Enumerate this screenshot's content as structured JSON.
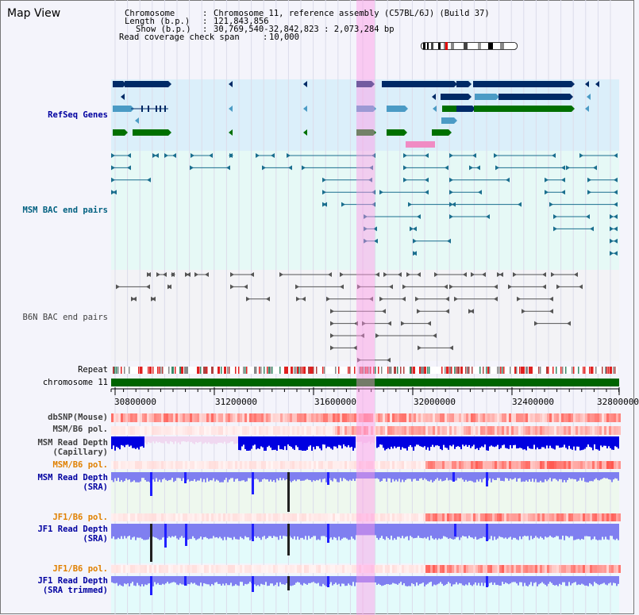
{
  "header": {
    "view_title": "Map View",
    "chromosome_label": "Chromosome",
    "chromosome_value": "Chromosome 11, reference assembly (C57BL/6J) (Build 37)",
    "length_label": "Length (b.p.)",
    "length_value": "121,843,856",
    "show_label": "Show (b.p.)",
    "show_value": "30,769,540-32,842,823 : 2,073,284 bp",
    "coverage_label": "Read coverage check span",
    "coverage_value": "10,000"
  },
  "tracks": {
    "refseq": "RefSeq Genes",
    "msm_bac": "MSM BAC end pairs",
    "b6n_bac": "B6N BAC end pairs",
    "repeat": "Repeat",
    "chromosome": "chromosome 11",
    "dbsnp": "dbSNP(Mouse)",
    "msm_b6_pol_cap": "MSM/B6 pol.",
    "msm_depth_cap_1": "MSM Read Depth",
    "msm_depth_cap_2": "(Capillary)",
    "msm_b6_pol_sra": "MSM/B6 pol.",
    "msm_depth_sra_1": "MSM Read Depth",
    "msm_depth_sra_2": "(SRA)",
    "jf1_b6_pol_1": "JF1/B6 pol.",
    "jf1_depth_sra_1": "JF1 Read Depth",
    "jf1_depth_sra_2": "(SRA)",
    "jf1_b6_pol_2": "JF1/B6 pol.",
    "jf1_depth_trim_1": "JF1 Read Depth",
    "jf1_depth_trim_2": "(SRA trimmed)"
  },
  "axis": {
    "ticks": [
      "30800000",
      "31200000",
      "31600000",
      "32000000",
      "32400000",
      "32800000"
    ]
  },
  "colors": {
    "gene_navy": "#002a66",
    "gene_blue": "#4b9bc5",
    "gene_green": "#007000",
    "bac_teal": "#1a6e8e",
    "bac_gray": "#555555",
    "chrom_green": "#006400",
    "highlight": "#ff96e6",
    "depth_blue": "#0000e0",
    "depth_lavender": "#7f7ff0",
    "pol_red": "#e83a3a"
  }
}
